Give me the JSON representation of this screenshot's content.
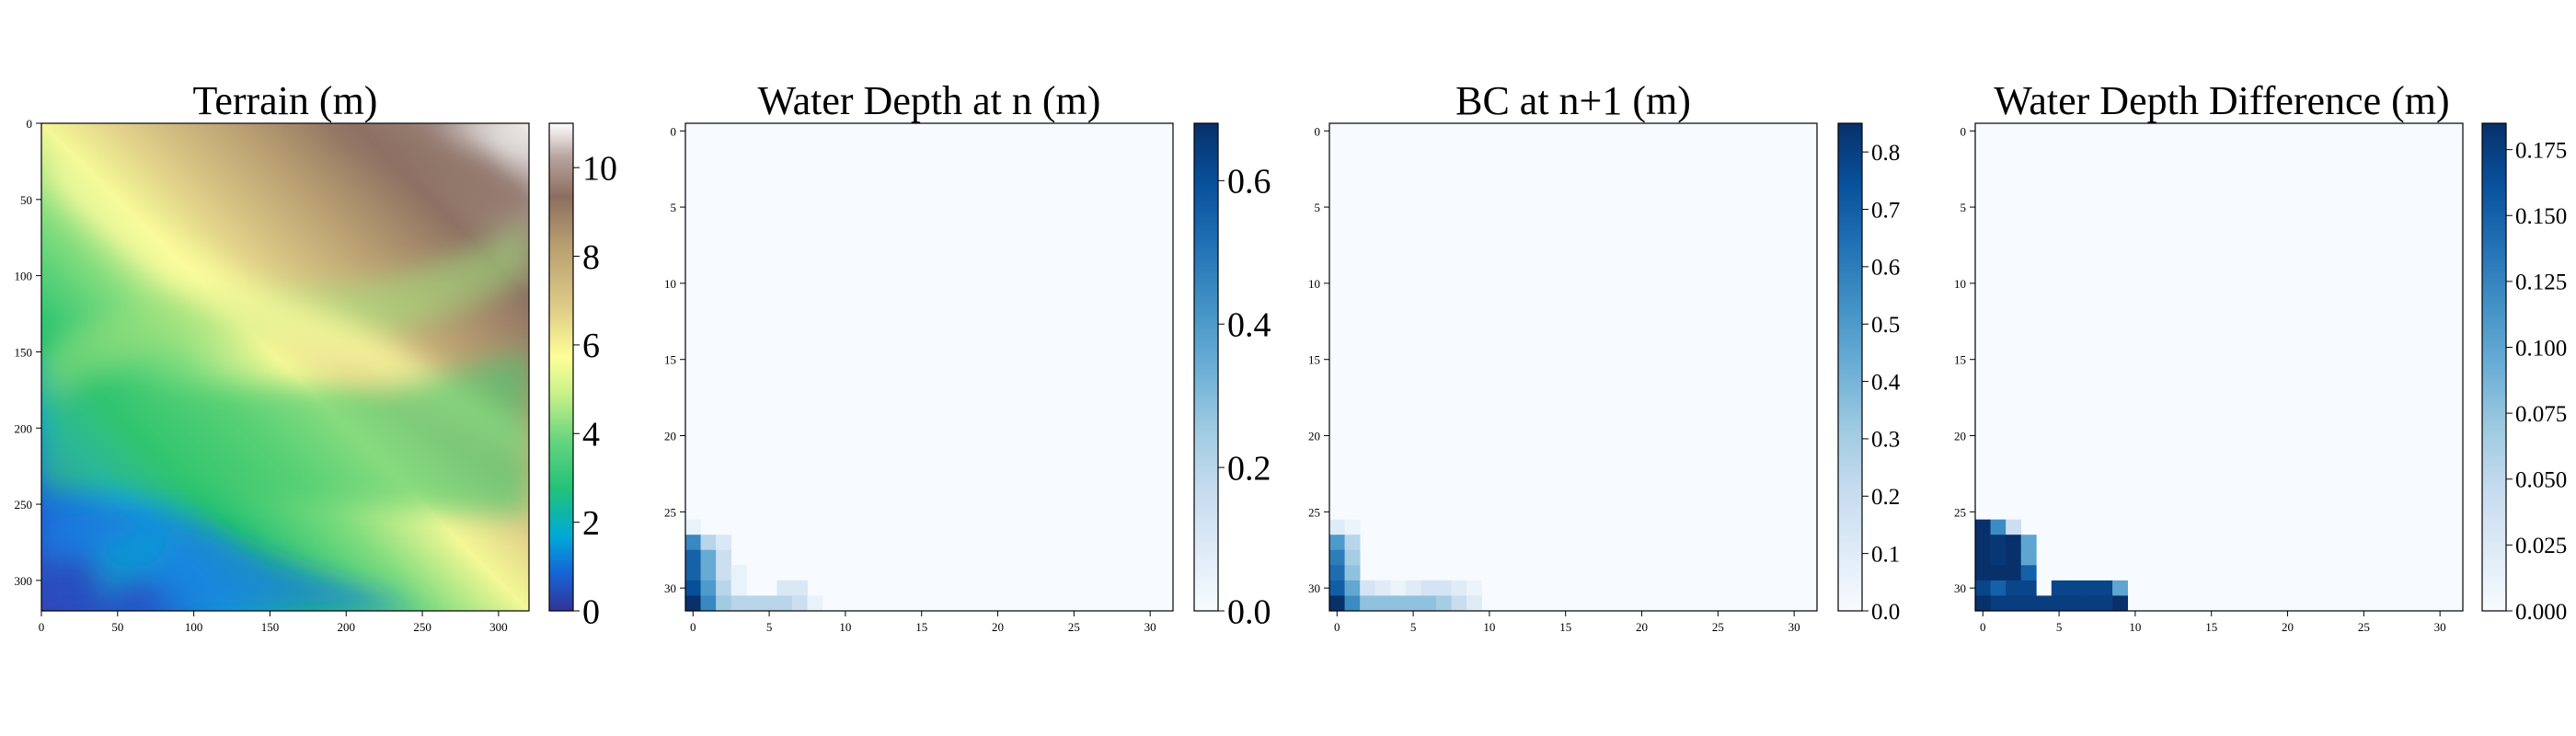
{
  "chart_data": [
    {
      "type": "heatmap",
      "title": "Terrain (m)",
      "xlim": [
        0,
        320
      ],
      "ylim": [
        320,
        0
      ],
      "xticks": [
        "0",
        "50",
        "100",
        "150",
        "200",
        "250",
        "300"
      ],
      "yticks": [
        "0",
        "50",
        "100",
        "150",
        "200",
        "250",
        "300"
      ],
      "colormap": "terrain",
      "clim": [
        0,
        11
      ],
      "colorbar_ticks": [
        "0",
        "2",
        "4",
        "6",
        "8",
        "10"
      ],
      "description_values": "continuous elevation field, lowest (~0-1 m) in lower-left, highest (~10-11 m) in upper-right"
    },
    {
      "type": "heatmap",
      "title": "Water Depth at n (m)",
      "grid_size": [
        32,
        32
      ],
      "xlim": [
        -0.5,
        31.5
      ],
      "ylim": [
        31.5,
        -0.5
      ],
      "xticks": [
        "0",
        "5",
        "10",
        "15",
        "20",
        "25",
        "30"
      ],
      "yticks": [
        "0",
        "5",
        "10",
        "15",
        "20",
        "25",
        "30"
      ],
      "colormap": "Blues",
      "clim": [
        0,
        0.68
      ],
      "colorbar_ticks": [
        "0.0",
        "0.2",
        "0.4",
        "0.6"
      ],
      "cells": [
        [
          26,
          0,
          0.05
        ],
        [
          27,
          0,
          0.45
        ],
        [
          27,
          1,
          0.2
        ],
        [
          27,
          2,
          0.1
        ],
        [
          28,
          0,
          0.55
        ],
        [
          28,
          1,
          0.35
        ],
        [
          28,
          2,
          0.15
        ],
        [
          29,
          0,
          0.55
        ],
        [
          29,
          1,
          0.35
        ],
        [
          29,
          2,
          0.15
        ],
        [
          29,
          3,
          0.05
        ],
        [
          30,
          0,
          0.6
        ],
        [
          30,
          1,
          0.4
        ],
        [
          30,
          2,
          0.2
        ],
        [
          30,
          3,
          0.05
        ],
        [
          30,
          6,
          0.1
        ],
        [
          30,
          7,
          0.1
        ],
        [
          31,
          0,
          0.68
        ],
        [
          31,
          1,
          0.45
        ],
        [
          31,
          2,
          0.25
        ],
        [
          31,
          3,
          0.2
        ],
        [
          31,
          4,
          0.2
        ],
        [
          31,
          5,
          0.2
        ],
        [
          31,
          6,
          0.2
        ],
        [
          31,
          7,
          0.15
        ],
        [
          31,
          8,
          0.05
        ]
      ]
    },
    {
      "type": "heatmap",
      "title": "BC at n+1 (m)",
      "grid_size": [
        32,
        32
      ],
      "xlim": [
        -0.5,
        31.5
      ],
      "ylim": [
        31.5,
        -0.5
      ],
      "xticks": [
        "0",
        "5",
        "10",
        "15",
        "20",
        "25",
        "30"
      ],
      "yticks": [
        "0",
        "5",
        "10",
        "15",
        "20",
        "25",
        "30"
      ],
      "colormap": "Blues",
      "clim": [
        0,
        0.85
      ],
      "colorbar_ticks": [
        "0.0",
        "0.1",
        "0.2",
        "0.3",
        "0.4",
        "0.5",
        "0.6",
        "0.7",
        "0.8"
      ],
      "cells": [
        [
          26,
          0,
          0.1
        ],
        [
          26,
          1,
          0.05
        ],
        [
          27,
          0,
          0.5
        ],
        [
          27,
          1,
          0.25
        ],
        [
          28,
          0,
          0.6
        ],
        [
          28,
          1,
          0.3
        ],
        [
          29,
          0,
          0.65
        ],
        [
          29,
          1,
          0.35
        ],
        [
          30,
          0,
          0.7
        ],
        [
          30,
          1,
          0.45
        ],
        [
          30,
          2,
          0.15
        ],
        [
          30,
          3,
          0.1
        ],
        [
          30,
          4,
          0.05
        ],
        [
          30,
          5,
          0.1
        ],
        [
          30,
          6,
          0.15
        ],
        [
          30,
          7,
          0.15
        ],
        [
          30,
          8,
          0.1
        ],
        [
          30,
          9,
          0.05
        ],
        [
          31,
          0,
          0.85
        ],
        [
          31,
          1,
          0.55
        ],
        [
          31,
          2,
          0.35
        ],
        [
          31,
          3,
          0.35
        ],
        [
          31,
          4,
          0.35
        ],
        [
          31,
          5,
          0.35
        ],
        [
          31,
          6,
          0.35
        ],
        [
          31,
          7,
          0.3
        ],
        [
          31,
          8,
          0.2
        ],
        [
          31,
          9,
          0.1
        ]
      ]
    },
    {
      "type": "heatmap",
      "title": "Water Depth Difference (m)",
      "grid_size": [
        32,
        32
      ],
      "xlim": [
        -0.5,
        31.5
      ],
      "ylim": [
        31.5,
        -0.5
      ],
      "xticks": [
        "0",
        "5",
        "10",
        "15",
        "20",
        "25",
        "30"
      ],
      "yticks": [
        "0",
        "5",
        "10",
        "15",
        "20",
        "25",
        "30"
      ],
      "colormap": "Blues",
      "clim": [
        0,
        0.185
      ],
      "colorbar_ticks": [
        "0.000",
        "0.025",
        "0.050",
        "0.075",
        "0.100",
        "0.125",
        "0.150",
        "0.175"
      ],
      "cells": [
        [
          26,
          0,
          0.185
        ],
        [
          26,
          1,
          0.12
        ],
        [
          26,
          2,
          0.04
        ],
        [
          27,
          0,
          0.185
        ],
        [
          27,
          1,
          0.18
        ],
        [
          27,
          2,
          0.185
        ],
        [
          27,
          3,
          0.1
        ],
        [
          28,
          0,
          0.185
        ],
        [
          28,
          1,
          0.18
        ],
        [
          28,
          2,
          0.185
        ],
        [
          28,
          3,
          0.1
        ],
        [
          29,
          0,
          0.185
        ],
        [
          29,
          1,
          0.185
        ],
        [
          29,
          2,
          0.185
        ],
        [
          29,
          3,
          0.15
        ],
        [
          30,
          0,
          0.17
        ],
        [
          30,
          1,
          0.15
        ],
        [
          30,
          2,
          0.17
        ],
        [
          30,
          3,
          0.17
        ],
        [
          30,
          5,
          0.17
        ],
        [
          30,
          6,
          0.17
        ],
        [
          30,
          7,
          0.17
        ],
        [
          30,
          8,
          0.17
        ],
        [
          30,
          9,
          0.1
        ],
        [
          31,
          0,
          0.185
        ],
        [
          31,
          1,
          0.175
        ],
        [
          31,
          2,
          0.175
        ],
        [
          31,
          3,
          0.175
        ],
        [
          31,
          4,
          0.175
        ],
        [
          31,
          5,
          0.175
        ],
        [
          31,
          6,
          0.175
        ],
        [
          31,
          7,
          0.175
        ],
        [
          31,
          8,
          0.175
        ],
        [
          31,
          9,
          0.185
        ]
      ]
    }
  ]
}
